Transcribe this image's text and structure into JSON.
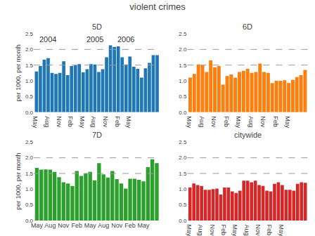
{
  "title": "violent crimes",
  "chart_data": [
    {
      "type": "bar",
      "title": "5D",
      "ylabel": "per 1000, per month",
      "categories": [
        "May",
        null,
        null,
        "Aug",
        null,
        null,
        "Nov",
        null,
        null,
        "Feb",
        null,
        null,
        "May",
        null,
        null,
        "Aug",
        null,
        null,
        "Nov",
        null,
        null,
        "Feb",
        null,
        null,
        "May",
        null,
        null,
        null,
        null,
        null,
        null,
        null
      ],
      "values": [
        1.3,
        1.47,
        1.67,
        1.72,
        1.25,
        1.22,
        1.25,
        1.62,
        1.18,
        1.47,
        1.5,
        1.53,
        1.27,
        1.37,
        1.53,
        1.52,
        1.28,
        1.37,
        1.75,
        2.13,
        2.08,
        2.1,
        1.75,
        1.52,
        1.77,
        1.45,
        1.38,
        1.1,
        1.4,
        1.57,
        1.82,
        1.82
      ],
      "ylim": [
        0,
        2.5
      ],
      "yticks": [
        {
          "value": 0.0,
          "label": "0.0"
        },
        0.5,
        {
          "value": 1.0,
          "label": "1.0"
        },
        1.5,
        {
          "value": 2.0,
          "label": "2.0"
        },
        2.5
      ],
      "reference_lines": {
        "values": [
          1.5,
          2.0
        ],
        "line_style": "dashed"
      },
      "annotations": [
        {
          "text": "2004",
          "x": 0.3,
          "y": 2.15
        },
        {
          "text": "2005",
          "x": 12.5,
          "y": 2.15
        },
        {
          "text": "2006",
          "x": 20.5,
          "y": 2.15
        }
      ],
      "grid": false
    },
    {
      "type": "bar",
      "title": "6D",
      "categories": [
        "May",
        null,
        null,
        "Aug",
        null,
        null,
        "Nov",
        null,
        null,
        "Feb",
        null,
        null,
        "May",
        null,
        null,
        "Aug",
        null,
        null,
        "Nov",
        null,
        null,
        "Feb",
        null,
        null,
        "May",
        null,
        null,
        null,
        null
      ],
      "values": [
        1.1,
        1.22,
        1.52,
        1.5,
        1.28,
        1.65,
        1.43,
        1.47,
        0.88,
        1.15,
        1.2,
        1.1,
        1.28,
        1.32,
        1.38,
        1.25,
        1.28,
        1.55,
        1.28,
        1.25,
        0.93,
        1.0,
        1.0,
        1.02,
        0.93,
        1.03,
        1.12,
        1.18,
        1.35
      ],
      "ylim": [
        0,
        2.5
      ],
      "yticks": [
        {
          "value": 0.0,
          "label": "0.0"
        },
        0.5,
        {
          "value": 1.0,
          "label": "1.0"
        },
        1.5,
        {
          "value": 2.0,
          "label": "2.0"
        },
        2.5
      ],
      "reference_lines": {
        "values": [
          1.5,
          2.0
        ],
        "line_style": "dashed"
      },
      "grid": false
    },
    {
      "type": "bar",
      "title": "7D",
      "ylabel": "per 1000, per month",
      "categories": [
        "May",
        null,
        null,
        "Aug",
        null,
        null,
        "Nov",
        null,
        null,
        "Feb",
        null,
        null,
        "May",
        null,
        null,
        "Aug",
        null,
        null,
        "Nov",
        null,
        null,
        "Feb",
        null,
        null,
        "May",
        null,
        null,
        null
      ],
      "values": [
        1.68,
        1.62,
        1.63,
        1.62,
        1.55,
        1.38,
        1.22,
        1.18,
        1.1,
        1.58,
        1.42,
        1.5,
        1.55,
        1.28,
        1.83,
        1.47,
        1.37,
        1.58,
        1.32,
        1.18,
        1.02,
        1.33,
        1.33,
        1.3,
        1.25,
        1.7,
        1.95,
        1.83
      ],
      "ylim": [
        0,
        2.5
      ],
      "yticks": [
        {
          "value": 0.0,
          "label": "0.0"
        },
        0.5,
        {
          "value": 1.0,
          "label": "1.0"
        },
        1.5,
        {
          "value": 2.0,
          "label": "2.0"
        },
        2.5
      ],
      "reference_lines": {
        "values": [
          1.5,
          2.0
        ],
        "line_style": "dashed"
      },
      "grid": false
    },
    {
      "type": "bar",
      "title": "citywide",
      "categories": [
        "May",
        null,
        null,
        "Aug",
        null,
        null,
        "Nov",
        null,
        null,
        "Feb",
        null,
        null,
        "May",
        null,
        null,
        "Aug",
        null,
        null,
        "Nov",
        null,
        null,
        "Feb",
        null,
        null,
        "May",
        null,
        null,
        null,
        null,
        null,
        null
      ],
      "values": [
        1.05,
        1.18,
        1.13,
        1.1,
        0.98,
        0.98,
        1.0,
        1.02,
        0.83,
        1.05,
        1.05,
        0.93,
        0.88,
        0.95,
        1.27,
        1.27,
        1.22,
        1.27,
        1.13,
        1.1,
        0.95,
        0.93,
        1.17,
        1.22,
        1.13,
        0.98,
        0.98,
        0.95,
        1.17,
        1.22,
        1.2
      ],
      "ylim": [
        0,
        2.5
      ],
      "yticks": [
        {
          "value": 0.0,
          "label": "0.0"
        },
        0.5,
        {
          "value": 1.0,
          "label": "1.0"
        },
        1.5,
        {
          "value": 2.0,
          "label": "2.0"
        },
        2.5
      ],
      "reference_lines": {
        "values": [
          1.5,
          2.0
        ],
        "line_style": "dashed"
      },
      "grid": false
    }
  ]
}
